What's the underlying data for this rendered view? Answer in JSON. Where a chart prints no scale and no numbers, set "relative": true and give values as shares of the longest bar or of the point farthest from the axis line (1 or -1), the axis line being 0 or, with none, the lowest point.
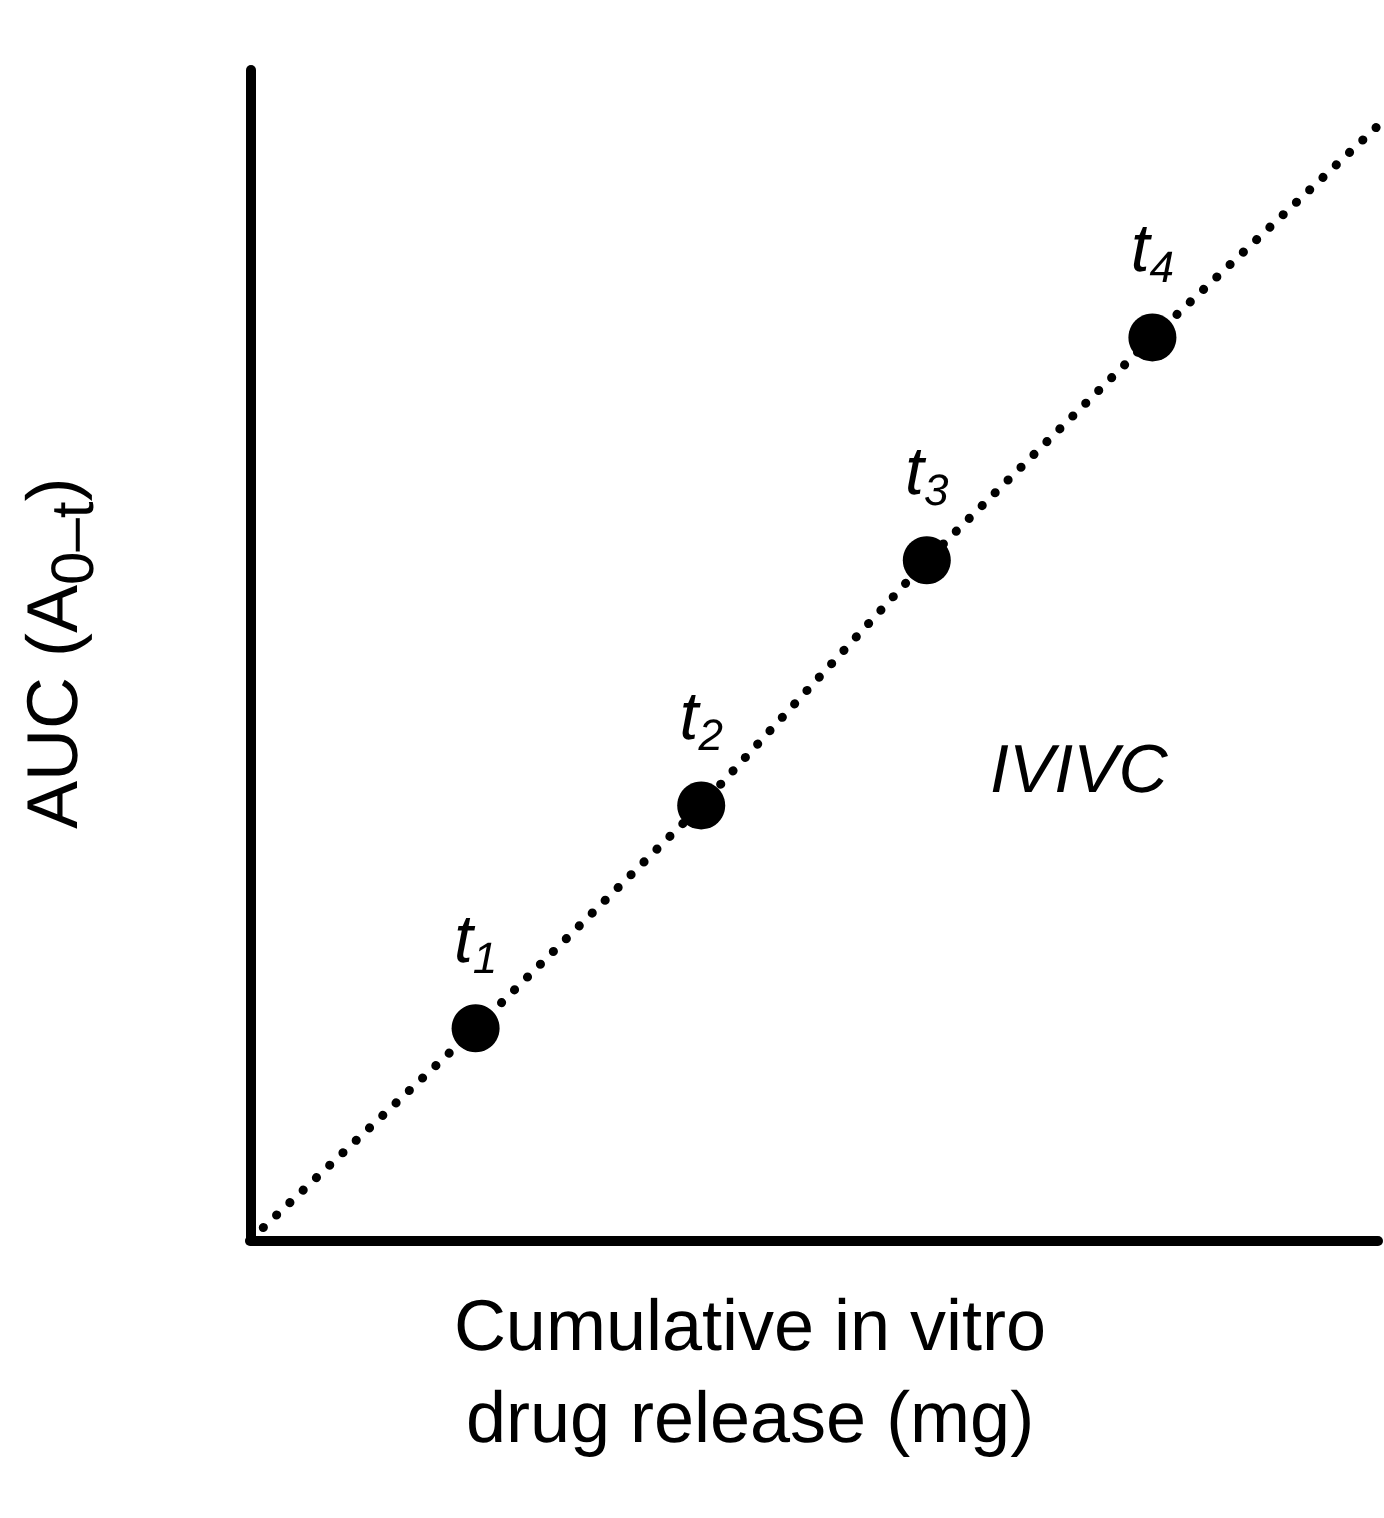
{
  "chart_data": {
    "type": "line",
    "relative": true,
    "xlabel": "Cumulative in vitro drug release (mg)",
    "ylabel": "AUC (A$_{0–t}$)",
    "categories": [
      null,
      null,
      null,
      null,
      null,
      null
    ],
    "annotations": [
      "IVIVC",
      {
        "text": "t$_{1}$",
        "y": 0.19
      },
      {
        "text": "t$_{2}$",
        "y": 0.39
      },
      {
        "text": "t$_{3}$",
        "y": 0.61
      },
      {
        "text": "t$_{4}$",
        "y": 0.81
      }
    ],
    "series": [
      {
        "color": "#000000",
        "line_style": "dotted",
        "marker": "circle",
        "values": [
          0,
          0.19,
          0.39,
          0.61,
          0.81,
          1
        ]
      }
    ]
  }
}
